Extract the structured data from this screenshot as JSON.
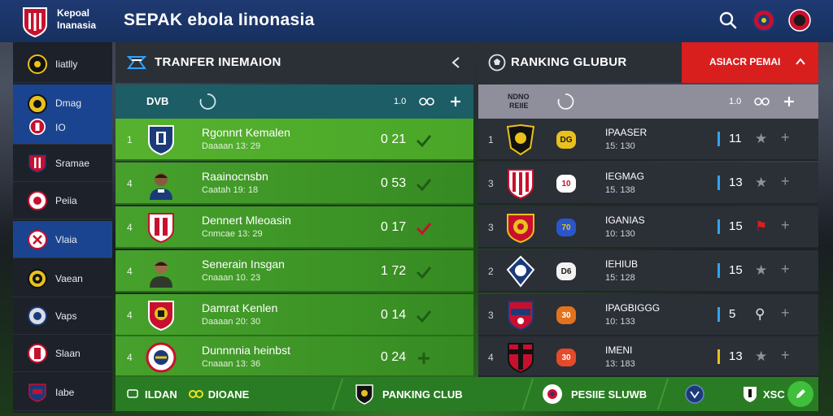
{
  "brand": {
    "line1": "Kepoal",
    "line2": "Inanasia"
  },
  "app_title": "SEPAK ebola Iinonasia",
  "sidebar": {
    "items": [
      {
        "label": "Iiatlly",
        "icon": "club-crest-icon"
      },
      {
        "label": "Dmag",
        "label2": "IO",
        "icon": "club-crest-icon"
      },
      {
        "label": "Sramae",
        "icon": "club-crest-icon"
      },
      {
        "label": "Peiia",
        "icon": "club-crest-icon"
      },
      {
        "label": "Vlaia",
        "icon": "club-crest-icon"
      },
      {
        "label": "Vaean",
        "icon": "club-crest-icon"
      },
      {
        "label": "Vaps",
        "icon": "club-crest-icon"
      },
      {
        "label": "Slaan",
        "icon": "club-crest-icon"
      },
      {
        "label": "Iabe",
        "icon": "club-crest-icon"
      }
    ]
  },
  "transfer": {
    "title": "TRANFER INEMAION",
    "sub_label": "DVB",
    "sub_meta": "1.0",
    "rows": [
      {
        "rank": "1",
        "name": "Rgonnrt Kemalen",
        "date": "Daaaan 13: 29",
        "value": "0 21"
      },
      {
        "rank": "4",
        "name": "Raainocnsbn",
        "date": "Caatah 19: 18",
        "value": "0 53"
      },
      {
        "rank": "4",
        "name": "Dennert Mleoasin",
        "date": "Cnmcae 13: 29",
        "value": "0 17"
      },
      {
        "rank": "4",
        "name": "Senerain Insgan",
        "date": "Cnaaan 10. 23",
        "value": "1 72"
      },
      {
        "rank": "4",
        "name": "Damrat Kenlen",
        "date": "Daaaan 20: 30",
        "value": "0 14"
      },
      {
        "rank": "4",
        "name": "Dunnnnia heinbst",
        "date": "Cnaaan 13: 36",
        "value": "0 24"
      }
    ]
  },
  "ranking": {
    "title": "RANKING GLUBUR",
    "tab": "ASIACR PEMAI",
    "sub_label": "NDNO",
    "sub_label2": "REIIE",
    "sub_meta": "1.0",
    "rows": [
      {
        "rank": "1",
        "badge": "DG",
        "name": "IPAASER",
        "date": "15: 130",
        "score": "11",
        "bar_color": "#2ea3ff",
        "badge_color": "#e8c11c"
      },
      {
        "rank": "3",
        "badge": "10",
        "name": "IEGMAG",
        "date": "15. 138",
        "score": "13",
        "bar_color": "#2ea3ff",
        "badge_color": "#ffffff"
      },
      {
        "rank": "3",
        "badge": "70",
        "name": "IGANIAS",
        "date": "10: 130",
        "score": "15",
        "bar_color": "#2ea3ff",
        "badge_color": "#2a56c9"
      },
      {
        "rank": "2",
        "badge": "D6",
        "name": "IEHIUB",
        "date": "15: 128",
        "score": "15",
        "bar_color": "#2ea3ff",
        "badge_color": "#f2f2f2"
      },
      {
        "rank": "3",
        "badge": "30",
        "name": "IPAGBIGGG",
        "date": "10: 133",
        "score": "5",
        "bar_color": "#2ea3ff",
        "badge_color": "#e3721c"
      },
      {
        "rank": "4",
        "badge": "30",
        "name": "IMENI",
        "date": "13: 183",
        "score": "13",
        "bar_color": "#e8c11c",
        "badge_color": "#e64a2a"
      }
    ]
  },
  "bottombar": {
    "item1": "ILDAN",
    "item1b": "DIOANE",
    "item2": "PANKING CLUB",
    "item3": "PESIIE SLUWB",
    "item4": "XSC"
  },
  "colors": {
    "topbar": "#1f3a72",
    "accent_red": "#d91e1e",
    "green_row": "#47a12c",
    "bottombar": "#2a7c24"
  }
}
